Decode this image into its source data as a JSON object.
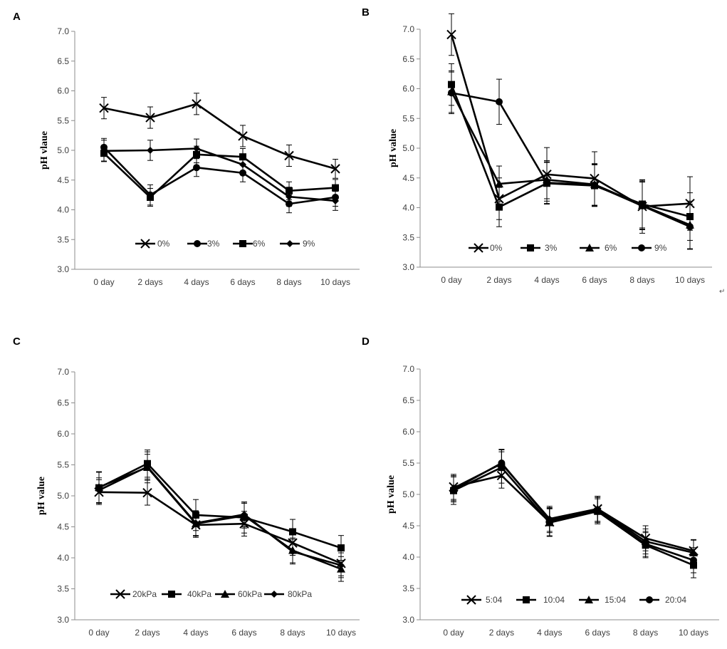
{
  "figure": {
    "stray_glyph": "↵"
  },
  "chart_data": [
    {
      "panel": "A",
      "type": "line",
      "title": "",
      "xlabel": "",
      "ylabel": "pH vlaue",
      "ylim": [
        3.0,
        7.0
      ],
      "yticks": [
        "3.0",
        "3.5",
        "4.0",
        "4.5",
        "5.0",
        "5.5",
        "6.0",
        "6.5",
        "7.0"
      ],
      "categories": [
        "0 day",
        "2 days",
        "4 days",
        "6 days",
        "8 days",
        "10 days"
      ],
      "legend_position": "bottom",
      "series": [
        {
          "name": "0%",
          "marker": "x",
          "values": [
            5.71,
            5.55,
            5.78,
            5.24,
            4.91,
            4.69
          ],
          "errors": [
            0.18,
            0.18,
            0.18,
            0.18,
            0.18,
            0.16
          ]
        },
        {
          "name": "3%",
          "marker": "circle",
          "values": [
            5.05,
            4.25,
            4.71,
            4.62,
            4.1,
            4.21
          ],
          "errors": [
            0.15,
            0.17,
            0.15,
            0.15,
            0.15,
            0.15
          ]
        },
        {
          "name": "6%",
          "marker": "square",
          "values": [
            4.95,
            4.21,
            4.93,
            4.89,
            4.32,
            4.37
          ],
          "errors": [
            0.13,
            0.15,
            0.14,
            0.14,
            0.15,
            0.14
          ]
        },
        {
          "name": "9%",
          "marker": "diamond",
          "values": [
            4.99,
            5.0,
            5.03,
            4.76,
            4.22,
            4.15
          ],
          "errors": [
            0.18,
            0.17,
            0.16,
            0.17,
            0.16,
            0.16
          ]
        }
      ]
    },
    {
      "panel": "B",
      "type": "line",
      "title": "",
      "xlabel": "",
      "ylabel": "pH value",
      "ylim": [
        3.0,
        7.0
      ],
      "yticks": [
        "3.0",
        "3.5",
        "4.0",
        "4.5",
        "5.0",
        "5.5",
        "6.0",
        "6.5",
        "7.0"
      ],
      "categories": [
        "0 day",
        "2 days",
        "4 days",
        "6 days",
        "8 days",
        "10 days"
      ],
      "legend_position": "bottom",
      "series": [
        {
          "name": "0%",
          "marker": "x",
          "values": [
            6.91,
            4.15,
            4.56,
            4.49,
            4.02,
            4.07
          ],
          "errors": [
            0.35,
            0.35,
            0.45,
            0.45,
            0.45,
            0.45
          ]
        },
        {
          "name": "3%",
          "marker": "square",
          "values": [
            6.07,
            4.01,
            4.41,
            4.37,
            4.06,
            3.85
          ],
          "errors": [
            0.35,
            0.33,
            0.35,
            0.35,
            0.4,
            0.4
          ]
        },
        {
          "name": "6%",
          "marker": "triangle",
          "values": [
            5.95,
            4.4,
            4.47,
            4.39,
            4.04,
            3.71
          ],
          "errors": [
            0.35,
            0.3,
            0.32,
            0.35,
            0.4,
            0.4
          ]
        },
        {
          "name": "9%",
          "marker": "circle",
          "values": [
            5.93,
            5.78,
            4.42,
            4.38,
            4.03,
            3.68
          ],
          "errors": [
            0.35,
            0.38,
            0.35,
            0.35,
            0.4,
            0.38
          ]
        }
      ]
    },
    {
      "panel": "C",
      "type": "line",
      "title": "",
      "xlabel": "",
      "ylabel": "pH value",
      "ylim": [
        3.0,
        7.0
      ],
      "yticks": [
        "3.0",
        "3.5",
        "4.0",
        "4.5",
        "5.0",
        "5.5",
        "6.0",
        "6.5",
        "7.0"
      ],
      "categories": [
        "0 day",
        "2 days",
        "4 days",
        "6 days",
        "8 days",
        "10 days"
      ],
      "legend_position": "bottom",
      "series": [
        {
          "name": "20kPa",
          "marker": "x",
          "values": [
            5.06,
            5.05,
            4.53,
            4.55,
            4.24,
            3.91
          ],
          "errors": [
            0.2,
            0.2,
            0.2,
            0.2,
            0.2,
            0.2
          ]
        },
        {
          "name": "40kPa",
          "marker": "square",
          "values": [
            5.13,
            5.52,
            4.69,
            4.65,
            4.42,
            4.16
          ],
          "errors": [
            0.25,
            0.22,
            0.25,
            0.25,
            0.2,
            0.2
          ]
        },
        {
          "name": "60kPa",
          "marker": "triangle",
          "values": [
            5.14,
            5.46,
            4.55,
            4.68,
            4.12,
            3.82
          ],
          "errors": [
            0.25,
            0.25,
            0.2,
            0.2,
            0.2,
            0.2
          ]
        },
        {
          "name": "80kPa",
          "marker": "diamond",
          "values": [
            5.09,
            5.47,
            4.56,
            4.7,
            4.1,
            3.88
          ],
          "errors": [
            0.2,
            0.2,
            0.2,
            0.2,
            0.2,
            0.2
          ]
        }
      ]
    },
    {
      "panel": "D",
      "type": "line",
      "title": "",
      "xlabel": "",
      "ylabel": "pH value",
      "ylim": [
        3.0,
        7.0
      ],
      "yticks": [
        "3.0",
        "3.5",
        "4.0",
        "4.5",
        "5.0",
        "5.5",
        "6.0",
        "6.5",
        "7.0"
      ],
      "categories": [
        "0 day",
        "2 days",
        "4 days",
        "6 days",
        "8 days",
        "10 days"
      ],
      "legend_position": "bottom",
      "series": [
        {
          "name": "5:04",
          "marker": "x",
          "values": [
            5.12,
            5.3,
            4.56,
            4.77,
            4.3,
            4.1
          ],
          "errors": [
            0.2,
            0.2,
            0.22,
            0.2,
            0.2,
            0.18
          ]
        },
        {
          "name": "10:04",
          "marker": "square",
          "values": [
            5.06,
            5.43,
            4.55,
            4.73,
            4.19,
            3.87
          ],
          "errors": [
            0.22,
            0.25,
            0.22,
            0.2,
            0.2,
            0.2
          ]
        },
        {
          "name": "15:04",
          "marker": "triangle",
          "values": [
            5.1,
            5.49,
            4.61,
            4.77,
            4.25,
            4.07
          ],
          "errors": [
            0.2,
            0.22,
            0.2,
            0.2,
            0.2,
            0.2
          ]
        },
        {
          "name": "20:04",
          "marker": "circle",
          "values": [
            5.08,
            5.5,
            4.59,
            4.75,
            4.21,
            3.95
          ],
          "errors": [
            0.2,
            0.22,
            0.2,
            0.2,
            0.2,
            0.2
          ]
        }
      ]
    }
  ]
}
